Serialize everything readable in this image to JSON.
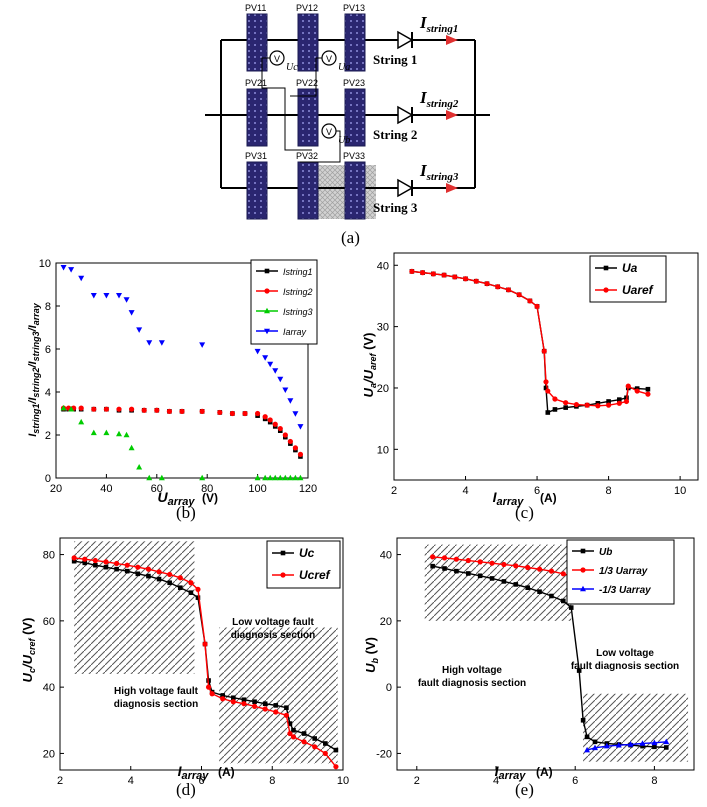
{
  "circuit": {
    "panels": [
      [
        "PV11",
        "PV12",
        "PV13"
      ],
      [
        "PV21",
        "PV22",
        "PV23"
      ],
      [
        "PV31",
        "PV32",
        "PV33"
      ]
    ],
    "strings": [
      "String 1",
      "String 2",
      "String 3"
    ],
    "currents": [
      "I",
      "I",
      "I"
    ],
    "current_subs": [
      "string1",
      "string2",
      "string3"
    ],
    "meters": [
      "V",
      "V",
      "V"
    ],
    "meter_labels": [
      "Uc",
      "Ua",
      "Ub"
    ]
  },
  "captions": [
    "(a)",
    "(b)",
    "(c)",
    "(d)",
    "(e)"
  ],
  "chart_data": [
    {
      "id": "b",
      "type": "scatter",
      "xlabel": "Uarray (V)",
      "ylabel": "Istring1/Istring2/Istring3/Iarray",
      "xlim": [
        20,
        120
      ],
      "ylim": [
        0,
        10
      ],
      "xticks": [
        20,
        40,
        60,
        80,
        100,
        120
      ],
      "yticks": [
        0,
        2,
        4,
        6,
        8,
        10
      ],
      "legend_position": "top-right",
      "series": [
        {
          "name": "Istring1",
          "color": "#000000",
          "marker": "square",
          "x": [
            23,
            25,
            27,
            30,
            35,
            40,
            45,
            50,
            55,
            60,
            65,
            70,
            78,
            85,
            90,
            95,
            100,
            103,
            105,
            107,
            109,
            111,
            113,
            115,
            117
          ],
          "y": [
            3.2,
            3.2,
            3.2,
            3.2,
            3.2,
            3.2,
            3.15,
            3.15,
            3.15,
            3.15,
            3.1,
            3.1,
            3.1,
            3.05,
            3.0,
            3.0,
            2.9,
            2.75,
            2.6,
            2.4,
            2.2,
            1.9,
            1.6,
            1.3,
            1.0
          ]
        },
        {
          "name": "Istring2",
          "color": "#ff0000",
          "marker": "circle",
          "x": [
            23,
            25,
            27,
            30,
            35,
            40,
            45,
            50,
            55,
            60,
            65,
            70,
            78,
            85,
            90,
            95,
            100,
            103,
            105,
            107,
            109,
            111,
            113,
            115,
            117
          ],
          "y": [
            3.25,
            3.25,
            3.25,
            3.25,
            3.2,
            3.2,
            3.2,
            3.2,
            3.15,
            3.15,
            3.1,
            3.1,
            3.1,
            3.05,
            3.0,
            3.0,
            3.0,
            2.85,
            2.7,
            2.5,
            2.3,
            2.0,
            1.7,
            1.4,
            1.1
          ]
        },
        {
          "name": "Istring3",
          "color": "#00cc00",
          "marker": "triangle-up",
          "x": [
            23,
            26,
            30,
            35,
            40,
            45,
            48,
            50,
            53,
            57,
            62,
            78,
            100,
            103,
            105,
            107,
            109,
            111,
            113,
            115,
            117
          ],
          "y": [
            3.25,
            3.2,
            2.6,
            2.1,
            2.1,
            2.05,
            2.0,
            1.4,
            0.5,
            0,
            0,
            0,
            0,
            0,
            0,
            0,
            0,
            0,
            0,
            0,
            0
          ]
        },
        {
          "name": "Iarray",
          "color": "#0000ff",
          "marker": "triangle-down",
          "x": [
            23,
            26,
            30,
            35,
            40,
            45,
            48,
            50,
            53,
            57,
            62,
            78,
            100,
            103,
            105,
            107,
            109,
            111,
            113,
            115,
            117
          ],
          "y": [
            9.8,
            9.7,
            9.3,
            8.5,
            8.5,
            8.5,
            8.3,
            7.7,
            6.9,
            6.3,
            6.3,
            6.2,
            5.9,
            5.6,
            5.3,
            5.0,
            4.6,
            4.1,
            3.6,
            3.0,
            2.4
          ]
        }
      ]
    },
    {
      "id": "c",
      "type": "line",
      "xlabel": "Iarray (A)",
      "ylabel": "Ua/Uaref (V)",
      "xlim": [
        2,
        10.5
      ],
      "ylim": [
        5,
        42
      ],
      "xticks": [
        2,
        4,
        6,
        8,
        10
      ],
      "yticks": [
        10,
        20,
        30,
        40
      ],
      "legend_position": "top-right",
      "series": [
        {
          "name": "Ua",
          "color": "#000000",
          "marker": "square",
          "x": [
            2.5,
            2.8,
            3.1,
            3.4,
            3.7,
            4.0,
            4.3,
            4.6,
            4.9,
            5.2,
            5.5,
            5.8,
            6.0,
            6.2,
            6.25,
            6.3,
            6.5,
            6.8,
            7.1,
            7.4,
            7.7,
            8.0,
            8.3,
            8.5,
            8.55,
            8.8,
            9.1
          ],
          "y": [
            39,
            38.8,
            38.6,
            38.4,
            38.1,
            37.8,
            37.4,
            37.0,
            36.5,
            36.0,
            35.2,
            34.2,
            33.3,
            26,
            20,
            16,
            16.5,
            16.8,
            17.0,
            17.2,
            17.5,
            17.8,
            18.1,
            18.4,
            20.0,
            19.9,
            19.8
          ]
        },
        {
          "name": "Uaref",
          "color": "#ff0000",
          "marker": "circle",
          "x": [
            2.5,
            2.8,
            3.1,
            3.4,
            3.7,
            4.0,
            4.3,
            4.6,
            4.9,
            5.2,
            5.5,
            5.8,
            6.0,
            6.2,
            6.25,
            6.3,
            6.5,
            6.8,
            7.1,
            7.4,
            7.7,
            8.0,
            8.3,
            8.5,
            8.55,
            8.8,
            9.1
          ],
          "y": [
            39,
            38.8,
            38.6,
            38.4,
            38.1,
            37.8,
            37.4,
            37.0,
            36.5,
            36.0,
            35.2,
            34.2,
            33.3,
            26,
            21,
            19.5,
            18.2,
            17.6,
            17.3,
            17.2,
            17.1,
            17.2,
            17.5,
            17.8,
            20.3,
            19.5,
            19.0
          ]
        }
      ]
    },
    {
      "id": "d",
      "type": "line",
      "xlabel": "Iarray(A)",
      "ylabel": "Uc/Ucref (V)",
      "xlim": [
        2,
        10
      ],
      "ylim": [
        15,
        85
      ],
      "xticks": [
        2,
        4,
        6,
        8,
        10
      ],
      "yticks": [
        20,
        40,
        60,
        80
      ],
      "legend_position": "top-right",
      "annotations": [
        "High voltage fault diagnosis section",
        "Low voltage fault diagnosis section"
      ],
      "series": [
        {
          "name": "Uc",
          "color": "#000000",
          "marker": "square",
          "x": [
            2.4,
            2.7,
            3.0,
            3.3,
            3.6,
            3.9,
            4.2,
            4.5,
            4.8,
            5.1,
            5.4,
            5.7,
            5.9,
            6.1,
            6.2,
            6.3,
            6.6,
            6.9,
            7.2,
            7.5,
            7.8,
            8.1,
            8.4,
            8.5,
            8.6,
            8.9,
            9.2,
            9.5,
            9.8
          ],
          "y": [
            78,
            77.5,
            76.8,
            76.2,
            75.6,
            75.0,
            74.2,
            73.5,
            72.6,
            71.5,
            70,
            68.5,
            67,
            53,
            42,
            38.5,
            37.5,
            36.8,
            36.2,
            35.6,
            35,
            34.5,
            33.8,
            29,
            27,
            26,
            24.5,
            23,
            21
          ]
        },
        {
          "name": "Ucref",
          "color": "#ff0000",
          "marker": "circle",
          "x": [
            2.4,
            2.7,
            3.0,
            3.3,
            3.6,
            3.9,
            4.2,
            4.5,
            4.8,
            5.1,
            5.4,
            5.7,
            5.9,
            6.1,
            6.2,
            6.3,
            6.6,
            6.9,
            7.2,
            7.5,
            7.8,
            8.1,
            8.4,
            8.5,
            8.6,
            8.9,
            9.2,
            9.5,
            9.8
          ],
          "y": [
            79,
            78.6,
            78.2,
            77.8,
            77.3,
            76.8,
            76.2,
            75.6,
            74.8,
            74.0,
            73,
            71.5,
            69.5,
            53,
            40,
            38,
            36.5,
            35.6,
            35,
            34.2,
            33.4,
            32.5,
            31.5,
            26,
            25,
            23.5,
            22,
            20,
            16
          ]
        }
      ]
    },
    {
      "id": "e",
      "type": "line",
      "xlabel": "Iarray(A)",
      "ylabel": "Ub (V)",
      "xlim": [
        1.5,
        9
      ],
      "ylim": [
        -25,
        45
      ],
      "xticks": [
        2,
        4,
        6,
        8
      ],
      "yticks": [
        -20,
        0,
        20,
        40
      ],
      "legend_position": "top-right",
      "annotations": [
        "High voltage fault diagnosis section",
        "Low voltage fault diagnosis section"
      ],
      "series": [
        {
          "name": "Ub",
          "color": "#000000",
          "marker": "square",
          "x": [
            2.4,
            2.7,
            3.0,
            3.3,
            3.6,
            3.9,
            4.2,
            4.5,
            4.8,
            5.1,
            5.4,
            5.7,
            5.9,
            6.1,
            6.2,
            6.3,
            6.5,
            6.8,
            7.1,
            7.4,
            7.7,
            8.0,
            8.3
          ],
          "y": [
            36.5,
            35.8,
            35.0,
            34.3,
            33.6,
            32.8,
            31.9,
            31.0,
            30.0,
            28.8,
            27.5,
            26,
            24,
            5,
            -10,
            -15,
            -16.5,
            -17,
            -17.3,
            -17.5,
            -17.8,
            -18,
            -18.2
          ]
        },
        {
          "name": "1/3 Uarray",
          "color": "#ff0000",
          "marker": "circle",
          "x": [
            2.4,
            2.7,
            3.0,
            3.3,
            3.6,
            3.9,
            4.2,
            4.5,
            4.8,
            5.1,
            5.4,
            5.7,
            5.9
          ],
          "y": [
            39.3,
            39.0,
            38.6,
            38.2,
            37.8,
            37.4,
            37.0,
            36.6,
            36.1,
            35.6,
            35.0,
            34.2,
            33.5
          ]
        },
        {
          "name": "-1/3 Uarray",
          "color": "#0000ff",
          "marker": "triangle-up",
          "x": [
            6.3,
            6.5,
            6.8,
            7.1,
            7.4,
            7.7,
            8.0,
            8.3
          ],
          "y": [
            -19,
            -18.3,
            -17.8,
            -17.5,
            -17.3,
            -17.0,
            -16.8,
            -16.5
          ]
        }
      ]
    }
  ]
}
